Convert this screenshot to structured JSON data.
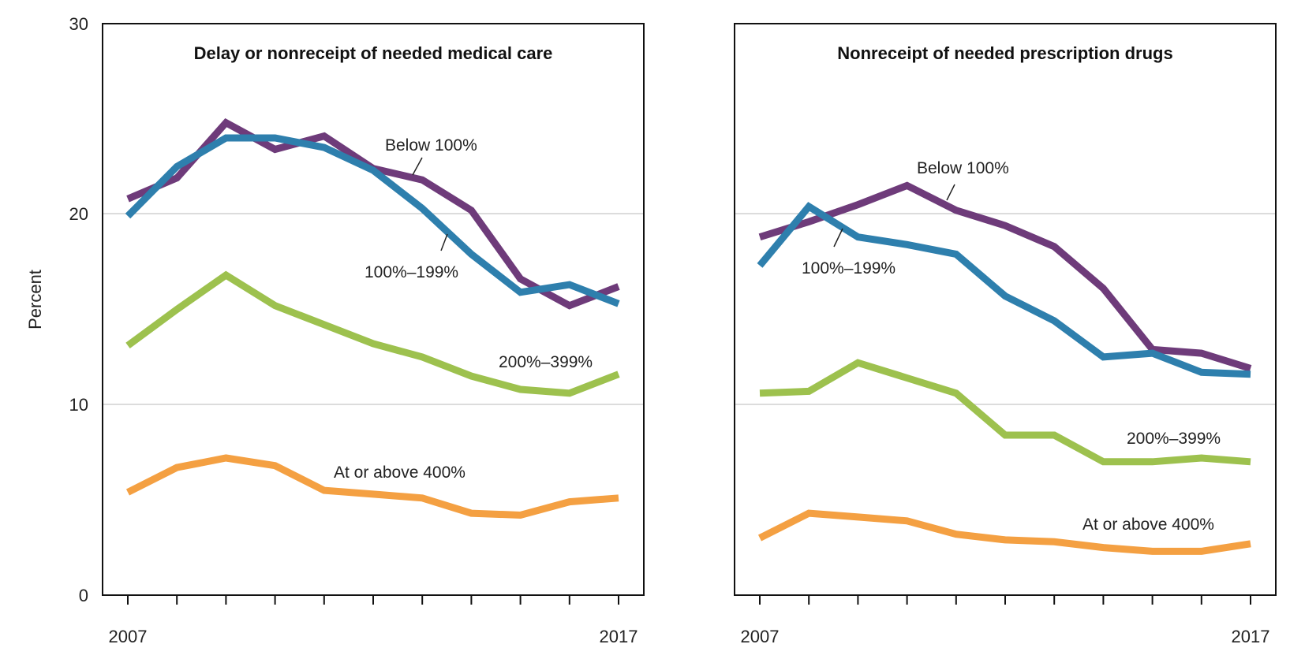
{
  "chart_data": [
    {
      "type": "line",
      "title": "Delay or nonreceipt of needed medical care",
      "ylabel": "Percent",
      "ylim": [
        0,
        30
      ],
      "yticks": [
        "0",
        "10",
        "20",
        "30"
      ],
      "grid": "horizontal at 10 and 20",
      "x": [
        2007,
        2008,
        2009,
        2010,
        2011,
        2012,
        2013,
        2014,
        2015,
        2016,
        2017
      ],
      "xtick_labels": [
        "2007",
        "2017"
      ],
      "series": [
        {
          "name": "Below 100%",
          "color": "#6e3b7a",
          "values": [
            20.8,
            21.9,
            24.8,
            23.4,
            24.1,
            22.4,
            21.8,
            20.2,
            16.6,
            15.2,
            16.2
          ]
        },
        {
          "name": "100%–199%",
          "color": "#2e7fad",
          "values": [
            19.9,
            22.5,
            24.0,
            24.0,
            23.5,
            22.3,
            20.3,
            17.9,
            15.9,
            16.3,
            15.3
          ]
        },
        {
          "name": "200%–399%",
          "color": "#9dc14e",
          "values": [
            13.1,
            15.0,
            16.8,
            15.2,
            14.2,
            13.2,
            12.5,
            11.5,
            10.8,
            10.6,
            11.6
          ]
        },
        {
          "name": "At or above 400%",
          "color": "#f4a042",
          "values": [
            5.4,
            6.7,
            7.2,
            6.8,
            5.5,
            5.3,
            5.1,
            4.3,
            4.2,
            4.9,
            5.1
          ]
        }
      ]
    },
    {
      "type": "line",
      "title": "Nonreceipt of needed prescription drugs",
      "ylim": [
        0,
        30
      ],
      "grid": "horizontal at 10 and 20",
      "x": [
        2007,
        2008,
        2009,
        2010,
        2011,
        2012,
        2013,
        2014,
        2015,
        2016,
        2017
      ],
      "xtick_labels": [
        "2007",
        "2017"
      ],
      "series": [
        {
          "name": "Below 100%",
          "color": "#6e3b7a",
          "values": [
            18.8,
            19.6,
            20.5,
            21.5,
            20.2,
            19.4,
            18.3,
            16.1,
            12.9,
            12.7,
            11.9
          ]
        },
        {
          "name": "100%–199%",
          "color": "#2e7fad",
          "values": [
            17.3,
            20.4,
            18.8,
            18.4,
            17.9,
            15.7,
            14.4,
            12.5,
            12.7,
            11.7,
            11.6
          ]
        },
        {
          "name": "200%–399%",
          "color": "#9dc14e",
          "values": [
            10.6,
            10.7,
            12.2,
            11.4,
            10.6,
            8.4,
            8.4,
            7.0,
            7.0,
            7.2,
            7.0
          ]
        },
        {
          "name": "At or above 400%",
          "color": "#f4a042",
          "values": [
            3.0,
            4.3,
            4.1,
            3.9,
            3.2,
            2.9,
            2.8,
            2.5,
            2.3,
            2.3,
            2.7
          ]
        }
      ]
    }
  ]
}
